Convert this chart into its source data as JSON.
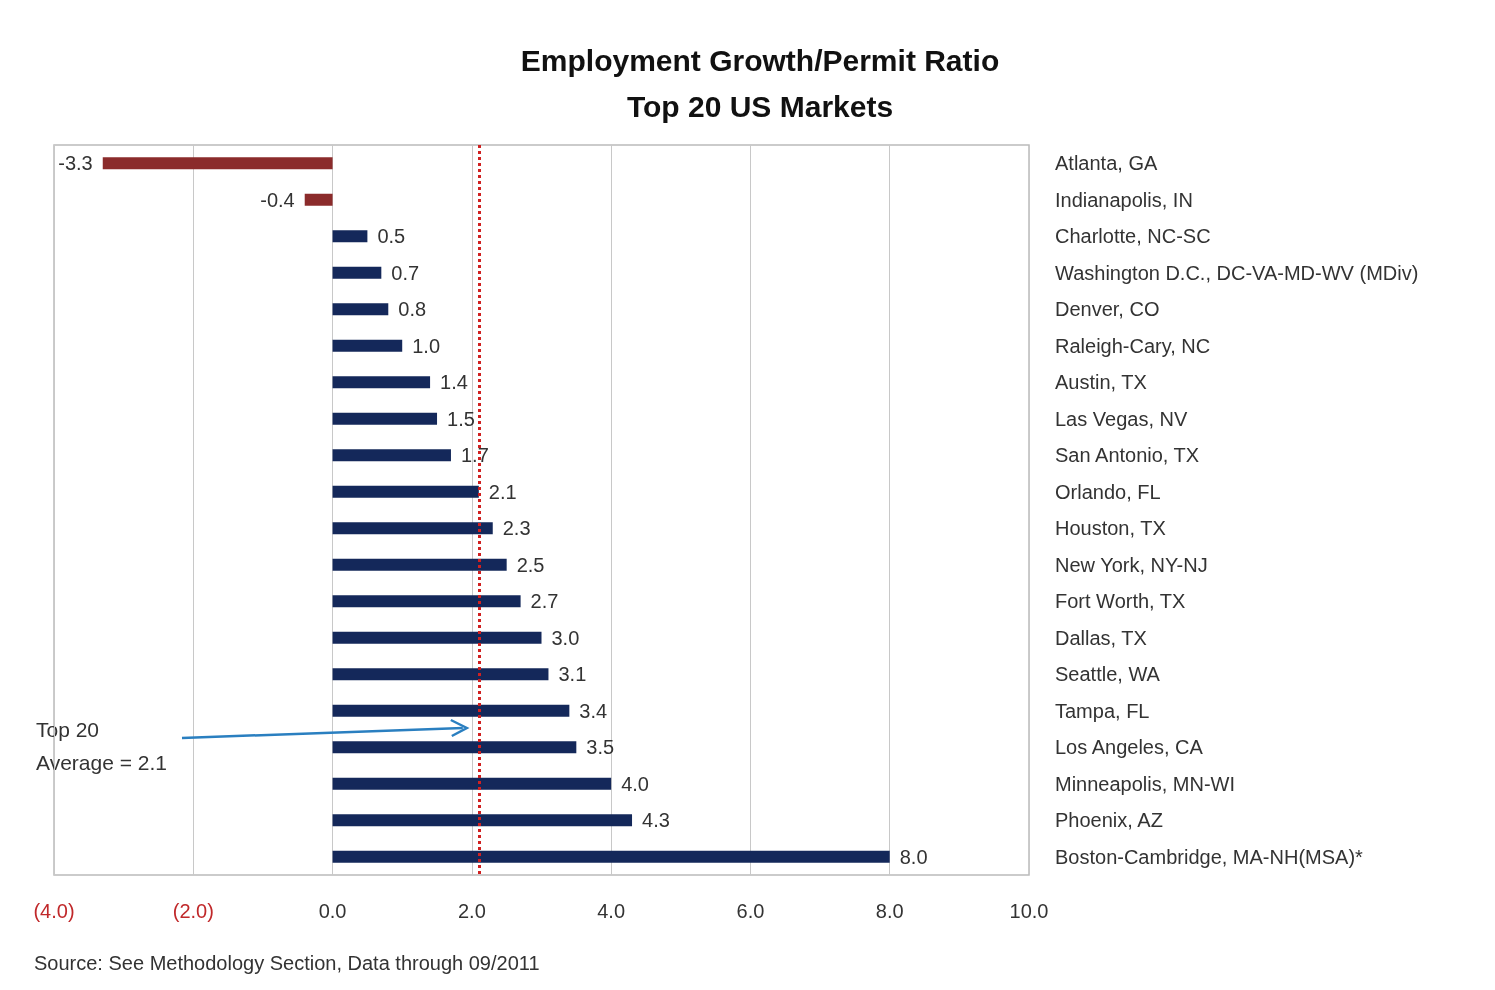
{
  "chart_data": {
    "type": "bar",
    "orientation": "horizontal",
    "title": "Employment Growth/Permit Ratio\nTop 20 US Markets",
    "categories": [
      "Atlanta, GA",
      "Indianapolis, IN",
      "Charlotte, NC-SC",
      "Washington D.C., DC-VA-MD-WV (MDiv)",
      "Denver, CO",
      "Raleigh-Cary, NC",
      "Austin, TX",
      "Las Vegas, NV",
      "San Antonio, TX",
      "Orlando, FL",
      "Houston, TX",
      "New York, NY-NJ",
      "Fort Worth, TX",
      "Dallas, TX",
      "Seattle, WA",
      "Tampa, FL",
      "Los Angeles, CA",
      "Minneapolis, MN-WI",
      "Phoenix, AZ",
      "Boston-Cambridge, MA-NH(MSA)*"
    ],
    "values": [
      -3.3,
      -0.4,
      0.5,
      0.7,
      0.8,
      1.0,
      1.4,
      1.5,
      1.7,
      2.1,
      2.3,
      2.5,
      2.7,
      3.0,
      3.1,
      3.4,
      3.5,
      4.0,
      4.3,
      8.0
    ],
    "value_labels": [
      "-3.3",
      "-0.4",
      "0.5",
      "0.7",
      "0.8",
      "1.0",
      "1.4",
      "1.5",
      "1.7",
      "2.1",
      "2.3",
      "2.5",
      "2.7",
      "3.0",
      "3.1",
      "3.4",
      "3.5",
      "4.0",
      "4.3",
      "8.0"
    ],
    "colors": [
      "#8b2b2b",
      "#8b2b2b",
      "#14285a",
      "#14285a",
      "#14285a",
      "#14285a",
      "#14285a",
      "#14285a",
      "#14285a",
      "#14285a",
      "#14285a",
      "#14285a",
      "#14285a",
      "#14285a",
      "#14285a",
      "#14285a",
      "#14285a",
      "#14285a",
      "#14285a",
      "#14285a"
    ],
    "xlim": [
      -4,
      10
    ],
    "xticks": [
      {
        "value": -4,
        "label": "(4.0)"
      },
      {
        "value": -2,
        "label": "(2.0)"
      },
      {
        "value": 0,
        "label": "0.0"
      },
      {
        "value": 2,
        "label": "2.0"
      },
      {
        "value": 4,
        "label": "4.0"
      },
      {
        "value": 6,
        "label": "6.0"
      },
      {
        "value": 8,
        "label": "8.0"
      },
      {
        "value": 10,
        "label": "10.0"
      }
    ],
    "grid": "x",
    "ref_lines": [
      {
        "axis": "x",
        "value": 2.1,
        "color": "#d02020",
        "line_style": "dotted"
      }
    ],
    "annotations": [
      "Top 20\nAverage = 2.1",
      "Source: See Methodology Section, Data through 09/2011"
    ]
  }
}
